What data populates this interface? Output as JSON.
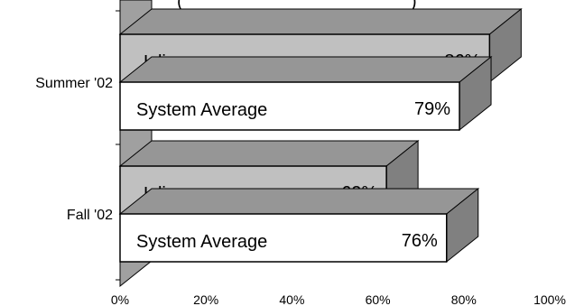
{
  "chart_data": {
    "type": "bar",
    "orientation": "horizontal",
    "style": "3d",
    "title_partial": "(",
    "title_partial_end": ")",
    "categories": [
      "Summer '02",
      "Fall '02"
    ],
    "series": [
      {
        "name": "L line",
        "values": [
          86,
          62
        ]
      },
      {
        "name": "System Average",
        "values": [
          79,
          76
        ]
      }
    ],
    "data_labels": {
      "Summer '02": {
        "L line": "86%",
        "System Average": "79%"
      },
      "Fall '02": {
        "L line": "62%",
        "System Average": "76%"
      }
    },
    "xlim": [
      0,
      100
    ],
    "x_ticks": [
      "0%",
      "20%",
      "40%",
      "60%",
      "80%",
      "100%"
    ],
    "grid": false,
    "legend": "none",
    "colors": {
      "L line": "#c0c0c0",
      "System Average": "#ffffff",
      "side_dark": "#808080",
      "top_face": "#969696",
      "wall": "#a0a0a0",
      "outline": "#000000"
    }
  }
}
